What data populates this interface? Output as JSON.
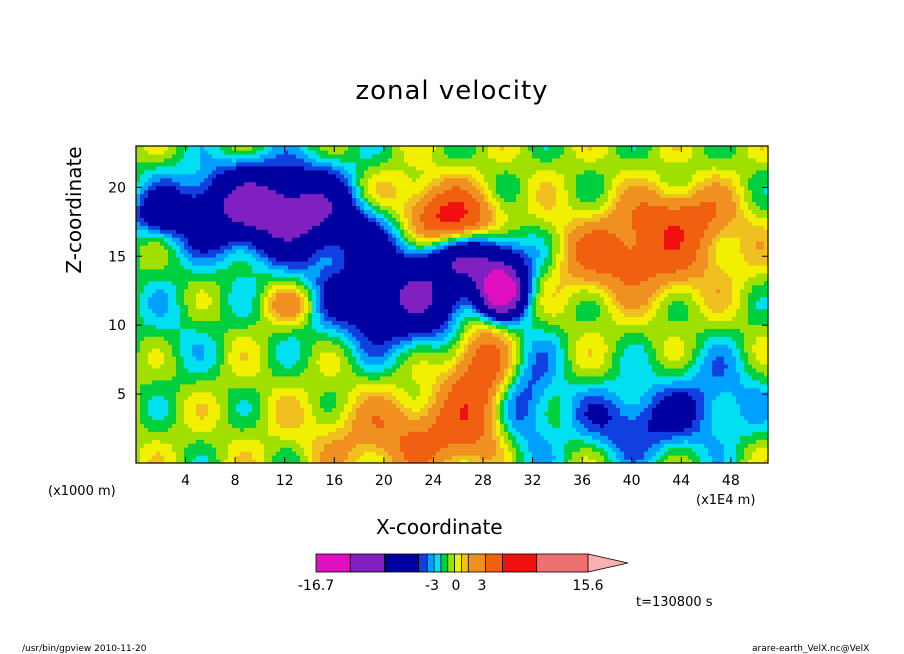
{
  "chart_data": {
    "type": "heatmap",
    "title": "zonal velocity",
    "xlabel": "X-coordinate",
    "ylabel": "Z-coordinate",
    "x_scale_note": "(x1E4 m)",
    "y_scale_note": "(x1000 m)",
    "xlim": [
      0,
      51
    ],
    "ylim": [
      0,
      23
    ],
    "x_ticks": [
      4,
      8,
      12,
      16,
      20,
      24,
      28,
      32,
      36,
      40,
      44,
      48
    ],
    "y_ticks": [
      5,
      10,
      15,
      20
    ],
    "colorbar": {
      "tick_labels": [
        "-16.7",
        "-3",
        "0",
        "3",
        "15.6"
      ],
      "levels": [
        -16.7,
        -12,
        -8,
        -3,
        -2,
        -1,
        0,
        1,
        2,
        3,
        4,
        6,
        9,
        12,
        15.6
      ],
      "colors": [
        "#e010c0",
        "#8020c0",
        "#0000a0",
        "#1040e0",
        "#00a0ff",
        "#00e0f0",
        "#00d040",
        "#a0e000",
        "#f0f000",
        "#f0c020",
        "#f09020",
        "#f06010",
        "#f01010",
        "#f07070",
        "#f8b0b0"
      ]
    },
    "time_label": "t=130800 s"
  },
  "footer": {
    "left": "/usr/bin/gpview  2010-11-20",
    "right": "arare-earth_VelX.nc@VelX"
  }
}
